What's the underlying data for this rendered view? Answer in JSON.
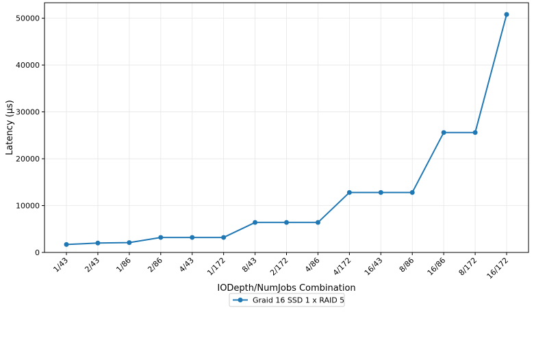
{
  "chart_data": {
    "type": "line",
    "categories": [
      "1/43",
      "2/43",
      "1/86",
      "2/86",
      "4/43",
      "1/172",
      "8/43",
      "2/172",
      "4/86",
      "4/172",
      "16/43",
      "8/86",
      "16/86",
      "8/172",
      "16/172"
    ],
    "series": [
      {
        "name": "Graid 16 SSD 1 x RAID 5",
        "values": [
          1700,
          2000,
          2100,
          3200,
          3200,
          3200,
          6400,
          6400,
          6400,
          12800,
          12800,
          12800,
          25600,
          25600,
          50800
        ],
        "color": "#1f77b4"
      }
    ],
    "xlabel": "IODepth/NumJobs Combination",
    "ylabel": "Latency (μs)",
    "ylim": [
      0,
      53300
    ],
    "yticks": [
      0,
      10000,
      20000,
      30000,
      40000,
      50000
    ],
    "grid": true,
    "legend_position": "bottom-center"
  }
}
